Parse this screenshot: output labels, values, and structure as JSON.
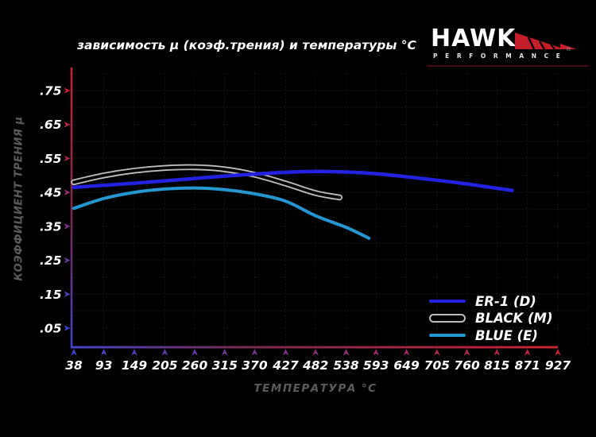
{
  "logo": {
    "brand": "HAWK",
    "subtitle": "PERFORMANCE",
    "reg": "®",
    "wing_color": "#c41e2a",
    "underline_color": "#450b12"
  },
  "chart_data": {
    "type": "line",
    "title": "зависимость μ (коэф.трения) и температуры °C",
    "xlabel": "ТЕМПЕРАТУРА °C",
    "ylabel": "КОЭФФИЦИЕНТ ТРЕНИЯ μ",
    "x_ticks": [
      38,
      93,
      149,
      205,
      260,
      315,
      370,
      427,
      482,
      538,
      593,
      649,
      705,
      760,
      815,
      871,
      927
    ],
    "y_ticks": [
      0.75,
      0.65,
      0.55,
      0.45,
      0.35,
      0.25,
      0.15,
      0.05
    ],
    "y_tick_labels": [
      ".75",
      ".65",
      ".55",
      ".45",
      ".35",
      ".25",
      ".15",
      ".05"
    ],
    "xlim": [
      38,
      927
    ],
    "ylim": [
      0,
      0.8
    ],
    "grid": {
      "style": "dotted",
      "color": "#262626",
      "y_step": 0.05
    },
    "legend_position": "bottom-right",
    "axis_colors": {
      "red": "#c82333",
      "purple": "#7a2a52",
      "blue": "#4444c8"
    },
    "tick_label_color": "#ffffff",
    "series": [
      {
        "name": "ER-1 (D)",
        "color": "#2222e0",
        "line_style": "solid",
        "points": [
          [
            38,
            0.465
          ],
          [
            93,
            0.471
          ],
          [
            149,
            0.477
          ],
          [
            205,
            0.484
          ],
          [
            260,
            0.491
          ],
          [
            315,
            0.498
          ],
          [
            370,
            0.504
          ],
          [
            427,
            0.509
          ],
          [
            482,
            0.512
          ],
          [
            538,
            0.51
          ],
          [
            593,
            0.505
          ],
          [
            649,
            0.496
          ],
          [
            705,
            0.486
          ],
          [
            760,
            0.475
          ],
          [
            815,
            0.462
          ],
          [
            843,
            0.456
          ]
        ]
      },
      {
        "name": "BLACK (M)",
        "color": "#050505",
        "outline_color": "#bdbdbd",
        "line_style": "outlined",
        "points": [
          [
            38,
            0.48
          ],
          [
            93,
            0.5
          ],
          [
            149,
            0.514
          ],
          [
            205,
            0.522
          ],
          [
            260,
            0.524
          ],
          [
            315,
            0.518
          ],
          [
            370,
            0.502
          ],
          [
            427,
            0.476
          ],
          [
            482,
            0.448
          ],
          [
            526,
            0.435
          ]
        ]
      },
      {
        "name": "BLUE (E)",
        "color": "#2596d1",
        "line_style": "solid",
        "points": [
          [
            38,
            0.403
          ],
          [
            93,
            0.432
          ],
          [
            149,
            0.45
          ],
          [
            205,
            0.46
          ],
          [
            260,
            0.463
          ],
          [
            315,
            0.458
          ],
          [
            370,
            0.446
          ],
          [
            427,
            0.424
          ],
          [
            482,
            0.381
          ],
          [
            538,
            0.347
          ],
          [
            580,
            0.315
          ]
        ]
      }
    ]
  }
}
